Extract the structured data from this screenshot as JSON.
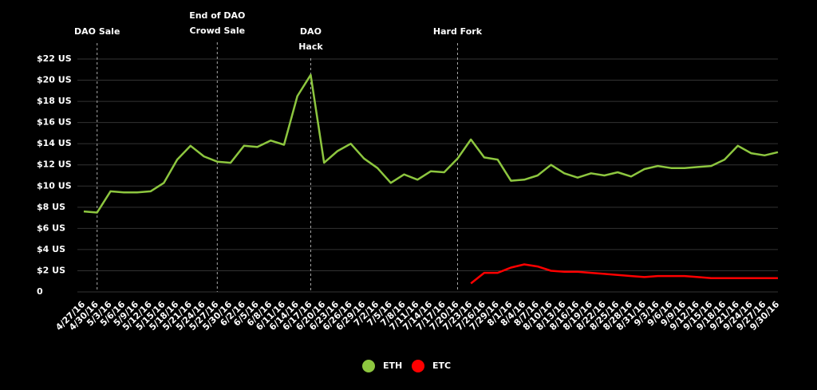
{
  "chart_data": {
    "type": "line",
    "categories": [
      "4/27/16",
      "4/30/16",
      "5/3/16",
      "5/6/16",
      "5/9/16",
      "5/12/16",
      "5/15/16",
      "5/18/16",
      "5/21/16",
      "5/24/16",
      "5/27/16",
      "5/30/16",
      "6/2/16",
      "6/5/16",
      "6/8/16",
      "6/11/16",
      "6/14/16",
      "6/17/16",
      "6/20/16",
      "6/23/16",
      "6/26/16",
      "6/29/16",
      "7/2/16",
      "7/5/16",
      "7/8/16",
      "7/11/16",
      "7/14/16",
      "7/17/16",
      "7/20/16",
      "7/23/16",
      "7/26/16",
      "7/29/16",
      "8/1/16",
      "8/4/16",
      "8/7/16",
      "8/10/16",
      "8/13/16",
      "8/16/16",
      "8/19/16",
      "8/22/16",
      "8/25/16",
      "8/28/16",
      "8/31/16",
      "9/3/16",
      "9/6/16",
      "9/9/16",
      "9/12/16",
      "9/15/16",
      "9/18/16",
      "9/21/16",
      "9/24/16",
      "9/27/16",
      "9/30/16"
    ],
    "series": [
      {
        "name": "ETH",
        "color": "#8dc63f",
        "values": [
          7.6,
          7.5,
          9.5,
          9.4,
          9.4,
          9.5,
          10.3,
          12.5,
          13.8,
          12.8,
          12.3,
          12.2,
          13.8,
          13.7,
          14.3,
          13.9,
          18.5,
          20.5,
          12.2,
          13.3,
          14.0,
          12.6,
          11.7,
          10.3,
          11.1,
          10.6,
          11.4,
          11.3,
          12.6,
          14.4,
          12.7,
          12.5,
          10.5,
          10.6,
          11.0,
          12.0,
          11.2,
          10.8,
          11.2,
          11.0,
          11.3,
          10.9,
          11.6,
          11.9,
          11.7,
          11.7,
          11.8,
          11.9,
          12.5,
          13.8,
          13.1,
          12.9,
          13.2
        ]
      },
      {
        "name": "ETC",
        "color": "#ff0000",
        "values": [
          null,
          null,
          null,
          null,
          null,
          null,
          null,
          null,
          null,
          null,
          null,
          null,
          null,
          null,
          null,
          null,
          null,
          null,
          null,
          null,
          null,
          null,
          null,
          null,
          null,
          null,
          null,
          null,
          null,
          0.8,
          1.8,
          1.8,
          2.3,
          2.6,
          2.4,
          2.0,
          1.9,
          1.9,
          1.8,
          1.7,
          1.6,
          1.5,
          1.4,
          1.5,
          1.5,
          1.5,
          1.4,
          1.3,
          1.3,
          1.3,
          1.3,
          1.3,
          1.3
        ]
      }
    ],
    "ylim": [
      0,
      22
    ],
    "yticks": [
      0,
      {
        "value": 2,
        "label": "$2 US"
      },
      {
        "value": 4,
        "label": "$4 US"
      },
      {
        "value": 6,
        "label": "$6 US"
      },
      {
        "value": 8,
        "label": "$8 US"
      },
      {
        "value": 10,
        "label": "$10 US"
      },
      {
        "value": 12,
        "label": "$12 US"
      },
      {
        "value": 14,
        "label": "$14 US"
      },
      {
        "value": 16,
        "label": "$16 US"
      },
      {
        "value": 18,
        "label": "$18 US"
      },
      {
        "value": 20,
        "label": "$20 US"
      },
      {
        "value": 22,
        "label": "$22 US"
      }
    ],
    "grid": true,
    "legend": "bottom",
    "annotations": [
      {
        "x": "4/30/16",
        "lines": [
          "DAO Sale"
        ]
      },
      {
        "x": "5/27/16",
        "lines": [
          "End of DAO",
          "Crowd Sale"
        ]
      },
      {
        "x": "6/17/16",
        "lines": [
          "DAO",
          "Hack"
        ]
      },
      {
        "x": "7/20/16",
        "lines": [
          "Hard Fork"
        ]
      }
    ]
  }
}
